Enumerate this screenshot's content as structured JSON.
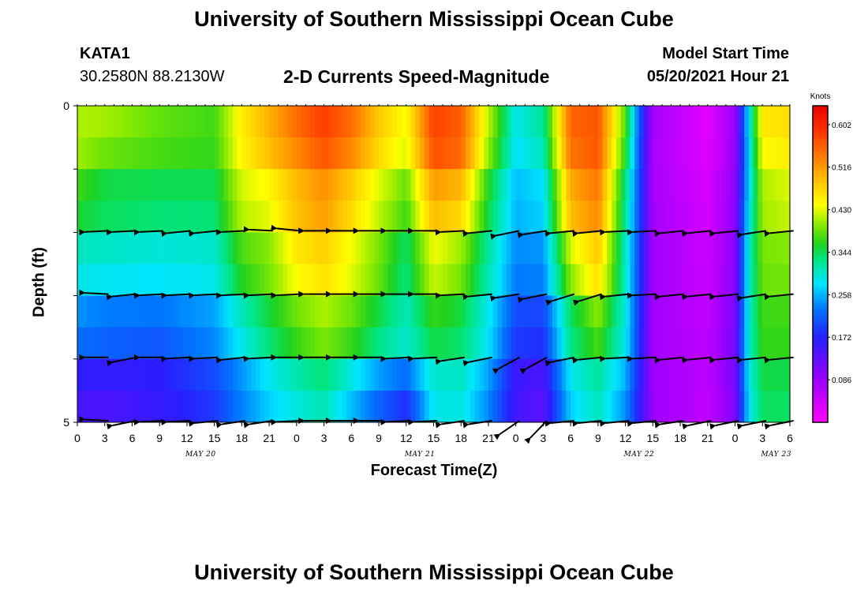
{
  "header": {
    "title": "University of Southern Mississippi Ocean Cube",
    "station": "KATA1",
    "coords": "30.2580N  88.2130W",
    "subtitle": "2-D Currents Speed-Magnitude",
    "model_start_label": "Model Start Time",
    "model_start_value": "05/20/2021 Hour 21"
  },
  "footer": {
    "title": "University of Southern Mississippi Ocean Cube"
  },
  "chart_data": {
    "type": "heatmap",
    "xlabel": "Forecast Time(Z)",
    "ylabel": "Depth (ft)",
    "x_tick_labels": [
      "0",
      "3",
      "6",
      "9",
      "12",
      "15",
      "18",
      "21",
      "0",
      "3",
      "6",
      "9",
      "12",
      "15",
      "18",
      "21",
      "0",
      "3",
      "6",
      "9",
      "12",
      "15",
      "18",
      "21",
      "0",
      "3",
      "6"
    ],
    "date_labels": [
      {
        "text": "MAY 20",
        "at_tick": 4.5
      },
      {
        "text": "MAY 21",
        "at_tick": 12.5
      },
      {
        "text": "MAY 22",
        "at_tick": 20.5
      },
      {
        "text": "MAY 23",
        "at_tick": 25.5
      }
    ],
    "y_tick_labels": [
      "0",
      "5"
    ],
    "ylim": [
      0,
      5
    ],
    "colorbar": {
      "unit": "Knots",
      "labels": [
        "0.602",
        "0.516",
        "0.430",
        "0.344",
        "0.258",
        "0.172",
        "0.086"
      ],
      "label_values": [
        0.602,
        0.516,
        0.43,
        0.344,
        0.258,
        0.172,
        0.086
      ],
      "min": 0.0,
      "max": 0.64
    },
    "speed_keyframes": [
      {
        "t": 0,
        "v": [
          0.42,
          0.4,
          0.33,
          0.27,
          0.2,
          0.12
        ]
      },
      {
        "t": 1,
        "v": [
          0.44,
          0.36,
          0.33,
          0.26,
          0.19,
          0.12
        ]
      },
      {
        "t": 3,
        "v": [
          0.4,
          0.36,
          0.32,
          0.26,
          0.18,
          0.15
        ]
      },
      {
        "t": 5,
        "v": [
          0.38,
          0.36,
          0.32,
          0.27,
          0.22,
          0.17
        ]
      },
      {
        "t": 6,
        "v": [
          0.46,
          0.44,
          0.4,
          0.34,
          0.26,
          0.22
        ]
      },
      {
        "t": 7,
        "v": [
          0.52,
          0.47,
          0.41,
          0.38,
          0.31,
          0.25
        ]
      },
      {
        "t": 8,
        "v": [
          0.58,
          0.5,
          0.48,
          0.42,
          0.34,
          0.27
        ]
      },
      {
        "t": 9,
        "v": [
          0.61,
          0.54,
          0.5,
          0.44,
          0.37,
          0.28
        ]
      },
      {
        "t": 10,
        "v": [
          0.58,
          0.5,
          0.45,
          0.42,
          0.34,
          0.22
        ]
      },
      {
        "t": 11,
        "v": [
          0.5,
          0.45,
          0.4,
          0.38,
          0.3,
          0.17
        ]
      },
      {
        "t": 12,
        "v": [
          0.46,
          0.41,
          0.35,
          0.32,
          0.29,
          0.12
        ]
      },
      {
        "t": 13,
        "v": [
          0.6,
          0.55,
          0.46,
          0.4,
          0.32,
          0.27
        ]
      },
      {
        "t": 14,
        "v": [
          0.57,
          0.54,
          0.43,
          0.37,
          0.32,
          0.28
        ]
      },
      {
        "t": 15,
        "v": [
          0.44,
          0.38,
          0.33,
          0.3,
          0.27,
          0.22
        ]
      },
      {
        "t": 16,
        "v": [
          0.3,
          0.27,
          0.25,
          0.22,
          0.17,
          0.14
        ]
      },
      {
        "t": 17,
        "v": [
          0.34,
          0.29,
          0.26,
          0.22,
          0.16,
          0.12
        ]
      },
      {
        "t": 18,
        "v": [
          0.57,
          0.53,
          0.47,
          0.36,
          0.31,
          0.25
        ]
      },
      {
        "t": 19,
        "v": [
          0.57,
          0.56,
          0.51,
          0.44,
          0.34,
          0.29
        ]
      },
      {
        "t": 20,
        "v": [
          0.4,
          0.34,
          0.31,
          0.3,
          0.28,
          0.22
        ]
      },
      {
        "t": 20.5,
        "v": [
          0.22,
          0.2,
          0.2,
          0.19,
          0.18,
          0.16
        ]
      },
      {
        "t": 21,
        "v": [
          0.08,
          0.07,
          0.08,
          0.08,
          0.08,
          0.09
        ]
      },
      {
        "t": 23,
        "v": [
          0.02,
          0.03,
          0.04,
          0.05,
          0.06,
          0.05
        ]
      },
      {
        "t": 24,
        "v": [
          0.08,
          0.09,
          0.1,
          0.1,
          0.12,
          0.1
        ]
      },
      {
        "t": 24.5,
        "v": [
          0.3,
          0.26,
          0.3,
          0.3,
          0.3,
          0.27
        ]
      },
      {
        "t": 25,
        "v": [
          0.48,
          0.42,
          0.4,
          0.38,
          0.36,
          0.33
        ]
      },
      {
        "t": 26,
        "v": [
          0.48,
          0.44,
          0.41,
          0.38,
          0.36,
          0.33
        ]
      }
    ],
    "vector_times": [
      0.5,
      1.5,
      2.5,
      3.5,
      4.5,
      5.5,
      6.5,
      7.5,
      8.5,
      9.5,
      10.5,
      11.5,
      12.5,
      13.5,
      14.5,
      15.5,
      16.5,
      17.5,
      18.5,
      19.5,
      20.5,
      21.5,
      22.5,
      23.5,
      24.5,
      25.5
    ],
    "vector_rows": [
      {
        "depth": 2,
        "dirs": [
          0.05,
          0.05,
          0.05,
          0.1,
          0.1,
          0.05,
          -0.05,
          -0.1,
          0.0,
          0.0,
          0.0,
          0.0,
          0.0,
          0.05,
          0.1,
          0.2,
          0.15,
          0.1,
          0.1,
          0.05,
          0.05,
          0.1,
          0.1,
          0.1,
          0.15,
          0.1
        ]
      },
      {
        "depth": 3,
        "dirs": [
          -0.05,
          0.1,
          0.05,
          0.05,
          0.05,
          0.05,
          0.05,
          0.05,
          0.0,
          0.0,
          0.0,
          0.0,
          0.0,
          0.05,
          0.1,
          0.15,
          0.2,
          0.3,
          0.3,
          0.1,
          0.05,
          0.1,
          0.1,
          0.1,
          0.15,
          0.1
        ]
      },
      {
        "depth": 4,
        "dirs": [
          0.0,
          0.2,
          0.0,
          0.05,
          0.05,
          0.1,
          0.05,
          0.0,
          0.0,
          0.0,
          0.0,
          0.05,
          0.05,
          0.15,
          0.2,
          0.5,
          0.5,
          0.2,
          0.1,
          0.05,
          0.05,
          0.1,
          0.1,
          0.1,
          0.1,
          0.1
        ]
      },
      {
        "depth": 5,
        "dirs": [
          -0.05,
          0.2,
          0.05,
          0.05,
          0.1,
          0.15,
          0.15,
          0.05,
          0.0,
          0.0,
          0.0,
          0.05,
          0.05,
          0.15,
          0.15,
          0.6,
          0.8,
          0.1,
          0.1,
          0.1,
          0.1,
          0.15,
          0.2,
          0.2,
          0.2,
          0.2
        ]
      }
    ]
  }
}
